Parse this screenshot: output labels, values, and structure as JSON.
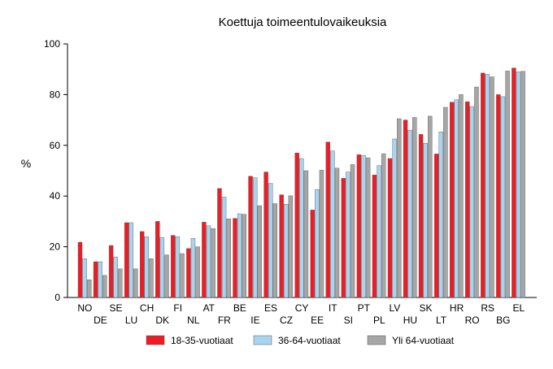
{
  "chart_data": {
    "type": "bar",
    "title": "Koettuja toimeentulovaikeuksia",
    "xlabel": "",
    "ylabel": "%",
    "ylim": [
      0,
      100
    ],
    "yticks": [
      0,
      20,
      40,
      60,
      80,
      100
    ],
    "grid": false,
    "legend_position": "bottom",
    "categories": [
      "NO",
      "DE",
      "SE",
      "LU",
      "CH",
      "DK",
      "FI",
      "NL",
      "AT",
      "FR",
      "BE",
      "IE",
      "ES",
      "CZ",
      "CY",
      "EE",
      "IT",
      "SI",
      "PT",
      "PL",
      "LV",
      "HU",
      "SK",
      "LT",
      "HR",
      "RO",
      "RS",
      "BG",
      "EL"
    ],
    "series": [
      {
        "name": "18-35-vuotiaat",
        "color": "#ee1c25",
        "values": [
          21.8,
          14.1,
          20.5,
          29.5,
          26.0,
          30.0,
          24.5,
          19.3,
          29.7,
          43.0,
          31.2,
          47.8,
          49.5,
          40.5,
          57.0,
          34.5,
          61.3,
          47.0,
          56.3,
          48.3,
          54.8,
          70.0,
          64.3,
          56.6,
          77.0,
          77.2,
          88.5,
          80.0,
          90.5
        ]
      },
      {
        "name": "36-64-vuotiaat",
        "color": "#a9d4f0",
        "values": [
          15.3,
          14.1,
          16.0,
          29.5,
          24.0,
          23.6,
          24.0,
          23.3,
          28.3,
          39.6,
          33.0,
          47.2,
          45.0,
          36.8,
          54.8,
          42.6,
          57.8,
          49.5,
          56.0,
          52.0,
          62.5,
          66.0,
          60.8,
          65.3,
          78.0,
          75.3,
          88.0,
          79.2,
          89.0
        ]
      },
      {
        "name": "Yli 64-vuotiaat",
        "color": "#a6a6a6",
        "values": [
          7.0,
          8.7,
          11.3,
          11.3,
          15.3,
          16.8,
          17.3,
          20.0,
          27.2,
          31.0,
          32.8,
          36.2,
          37.0,
          40.1,
          50.0,
          50.2,
          51.0,
          52.4,
          55.1,
          56.7,
          70.5,
          71.0,
          71.5,
          75.0,
          80.0,
          83.0,
          87.0,
          89.3,
          89.2
        ]
      }
    ]
  }
}
